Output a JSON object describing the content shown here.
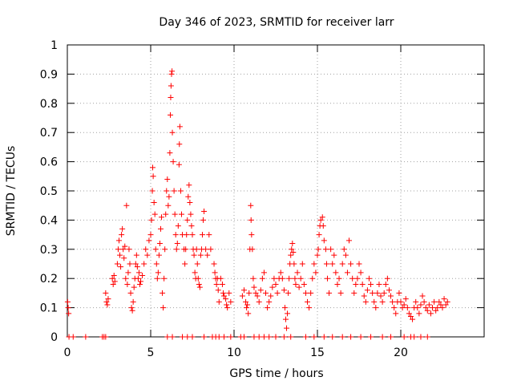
{
  "chart_data": {
    "type": "scatter",
    "title": "Day 346 of 2023, SRMTID for receiver larr",
    "xlabel": "GPS time / hours",
    "ylabel": "SRMTID / TECUs",
    "xlim": [
      0,
      25
    ],
    "ylim": [
      0,
      1
    ],
    "xticks": [
      0,
      5,
      10,
      15,
      20
    ],
    "xtick_labels": [
      "0",
      "5",
      "10",
      "15",
      "20"
    ],
    "yticks": [
      0,
      0.1,
      0.2,
      0.3,
      0.4,
      0.5,
      0.6,
      0.7,
      0.8,
      0.9,
      1
    ],
    "ytick_labels": [
      "0",
      "0.1",
      "0.2",
      "0.3",
      "0.4",
      "0.5",
      "0.6",
      "0.7",
      "0.8",
      "0.9",
      "1"
    ],
    "grid": true,
    "marker": "plus",
    "color": "#ff0000",
    "series": [
      {
        "name": "SRMTID",
        "points": [
          [
            0.02,
            0.12
          ],
          [
            0.05,
            0.1
          ],
          [
            0.08,
            0.08
          ],
          [
            0.1,
            0.0
          ],
          [
            0.35,
            0.0
          ],
          [
            1.1,
            0.0
          ],
          [
            2.1,
            0.0
          ],
          [
            2.2,
            0.0
          ],
          [
            2.3,
            0.0
          ],
          [
            2.3,
            0.15
          ],
          [
            2.35,
            0.12
          ],
          [
            2.4,
            0.11
          ],
          [
            2.45,
            0.13
          ],
          [
            2.7,
            0.2
          ],
          [
            2.75,
            0.18
          ],
          [
            2.8,
            0.21
          ],
          [
            2.85,
            0.19
          ],
          [
            3.0,
            0.25
          ],
          [
            3.05,
            0.3
          ],
          [
            3.1,
            0.33
          ],
          [
            3.15,
            0.28
          ],
          [
            3.2,
            0.24
          ],
          [
            3.25,
            0.35
          ],
          [
            3.3,
            0.37
          ],
          [
            3.35,
            0.3
          ],
          [
            3.4,
            0.27
          ],
          [
            3.45,
            0.31
          ],
          [
            3.5,
            0.2
          ],
          [
            3.55,
            0.45
          ],
          [
            3.6,
            0.18
          ],
          [
            3.65,
            0.22
          ],
          [
            3.7,
            0.3
          ],
          [
            3.75,
            0.25
          ],
          [
            3.8,
            0.15
          ],
          [
            3.85,
            0.1
          ],
          [
            3.9,
            0.09
          ],
          [
            3.95,
            0.12
          ],
          [
            4.0,
            0.17
          ],
          [
            4.05,
            0.2
          ],
          [
            4.1,
            0.25
          ],
          [
            4.15,
            0.28
          ],
          [
            4.2,
            0.24
          ],
          [
            4.25,
            0.2
          ],
          [
            4.3,
            0.22
          ],
          [
            4.35,
            0.18
          ],
          [
            4.4,
            0.19
          ],
          [
            4.5,
            0.21
          ],
          [
            4.6,
            0.25
          ],
          [
            4.7,
            0.3
          ],
          [
            4.8,
            0.28
          ],
          [
            4.9,
            0.33
          ],
          [
            5.0,
            0.35
          ],
          [
            5.05,
            0.4
          ],
          [
            5.1,
            0.5
          ],
          [
            5.12,
            0.58
          ],
          [
            5.15,
            0.55
          ],
          [
            5.2,
            0.46
          ],
          [
            5.25,
            0.42
          ],
          [
            5.3,
            0.3
          ],
          [
            5.35,
            0.25
          ],
          [
            5.4,
            0.2
          ],
          [
            5.45,
            0.22
          ],
          [
            5.5,
            0.28
          ],
          [
            5.55,
            0.32
          ],
          [
            5.6,
            0.37
          ],
          [
            5.65,
            0.41
          ],
          [
            5.7,
            0.15
          ],
          [
            5.75,
            0.1
          ],
          [
            5.8,
            0.2
          ],
          [
            5.85,
            0.3
          ],
          [
            5.9,
            0.42
          ],
          [
            5.95,
            0.5
          ],
          [
            6.0,
            0.54
          ],
          [
            6.05,
            0.45
          ],
          [
            6.1,
            0.48
          ],
          [
            6.15,
            0.63
          ],
          [
            6.18,
            0.76
          ],
          [
            6.2,
            0.82
          ],
          [
            6.22,
            0.86
          ],
          [
            6.25,
            0.9
          ],
          [
            6.28,
            0.91
          ],
          [
            6.3,
            0.7
          ],
          [
            6.35,
            0.6
          ],
          [
            6.4,
            0.5
          ],
          [
            6.45,
            0.42
          ],
          [
            6.5,
            0.35
          ],
          [
            6.55,
            0.3
          ],
          [
            6.6,
            0.32
          ],
          [
            6.65,
            0.38
          ],
          [
            6.7,
            0.59
          ],
          [
            6.72,
            0.66
          ],
          [
            6.75,
            0.72
          ],
          [
            6.8,
            0.5
          ],
          [
            6.85,
            0.42
          ],
          [
            6.9,
            0.35
          ],
          [
            7.0,
            0.3
          ],
          [
            7.05,
            0.25
          ],
          [
            7.1,
            0.3
          ],
          [
            7.15,
            0.35
          ],
          [
            7.2,
            0.4
          ],
          [
            7.25,
            0.48
          ],
          [
            7.3,
            0.52
          ],
          [
            7.35,
            0.46
          ],
          [
            7.4,
            0.42
          ],
          [
            7.45,
            0.38
          ],
          [
            7.5,
            0.35
          ],
          [
            7.55,
            0.3
          ],
          [
            7.6,
            0.28
          ],
          [
            7.65,
            0.22
          ],
          [
            7.7,
            0.2
          ],
          [
            7.75,
            0.3
          ],
          [
            7.8,
            0.25
          ],
          [
            7.85,
            0.2
          ],
          [
            7.9,
            0.18
          ],
          [
            7.95,
            0.17
          ],
          [
            8.0,
            0.28
          ],
          [
            8.05,
            0.3
          ],
          [
            8.1,
            0.35
          ],
          [
            8.15,
            0.4
          ],
          [
            8.2,
            0.43
          ],
          [
            8.3,
            0.3
          ],
          [
            8.4,
            0.28
          ],
          [
            8.5,
            0.35
          ],
          [
            8.6,
            0.3
          ],
          [
            8.8,
            0.25
          ],
          [
            8.85,
            0.22
          ],
          [
            8.9,
            0.2
          ],
          [
            8.95,
            0.18
          ],
          [
            9.0,
            0.2
          ],
          [
            9.05,
            0.16
          ],
          [
            9.1,
            0.12
          ],
          [
            9.2,
            0.2
          ],
          [
            9.3,
            0.18
          ],
          [
            9.35,
            0.15
          ],
          [
            9.4,
            0.14
          ],
          [
            9.5,
            0.13
          ],
          [
            9.55,
            0.11
          ],
          [
            9.6,
            0.1
          ],
          [
            9.7,
            0.15
          ],
          [
            9.8,
            0.12
          ],
          [
            10.5,
            0.14
          ],
          [
            10.6,
            0.16
          ],
          [
            10.7,
            0.12
          ],
          [
            10.75,
            0.1
          ],
          [
            10.8,
            0.11
          ],
          [
            10.85,
            0.08
          ],
          [
            10.9,
            0.15
          ],
          [
            10.95,
            0.3
          ],
          [
            11.0,
            0.45
          ],
          [
            11.02,
            0.4
          ],
          [
            11.05,
            0.35
          ],
          [
            11.1,
            0.3
          ],
          [
            11.15,
            0.2
          ],
          [
            11.2,
            0.17
          ],
          [
            11.3,
            0.15
          ],
          [
            11.4,
            0.14
          ],
          [
            11.5,
            0.12
          ],
          [
            11.6,
            0.16
          ],
          [
            11.7,
            0.2
          ],
          [
            11.8,
            0.22
          ],
          [
            11.9,
            0.15
          ],
          [
            12.0,
            0.1
          ],
          [
            12.1,
            0.12
          ],
          [
            12.2,
            0.14
          ],
          [
            12.3,
            0.17
          ],
          [
            12.4,
            0.2
          ],
          [
            12.5,
            0.18
          ],
          [
            12.6,
            0.15
          ],
          [
            12.7,
            0.2
          ],
          [
            12.8,
            0.22
          ],
          [
            12.9,
            0.2
          ],
          [
            13.0,
            0.16
          ],
          [
            13.05,
            0.1
          ],
          [
            13.1,
            0.06
          ],
          [
            13.15,
            0.03
          ],
          [
            13.2,
            0.08
          ],
          [
            13.25,
            0.15
          ],
          [
            13.3,
            0.2
          ],
          [
            13.35,
            0.25
          ],
          [
            13.4,
            0.28
          ],
          [
            13.45,
            0.3
          ],
          [
            13.5,
            0.32
          ],
          [
            13.55,
            0.29
          ],
          [
            13.6,
            0.25
          ],
          [
            13.65,
            0.2
          ],
          [
            13.7,
            0.18
          ],
          [
            13.8,
            0.22
          ],
          [
            13.9,
            0.17
          ],
          [
            14.0,
            0.2
          ],
          [
            14.1,
            0.25
          ],
          [
            14.2,
            0.18
          ],
          [
            14.3,
            0.15
          ],
          [
            14.4,
            0.12
          ],
          [
            14.5,
            0.1
          ],
          [
            14.6,
            0.15
          ],
          [
            14.7,
            0.2
          ],
          [
            14.8,
            0.25
          ],
          [
            14.9,
            0.22
          ],
          [
            15.0,
            0.28
          ],
          [
            15.05,
            0.3
          ],
          [
            15.1,
            0.35
          ],
          [
            15.15,
            0.38
          ],
          [
            15.2,
            0.4
          ],
          [
            15.3,
            0.41
          ],
          [
            15.35,
            0.38
          ],
          [
            15.4,
            0.33
          ],
          [
            15.5,
            0.3
          ],
          [
            15.55,
            0.25
          ],
          [
            15.6,
            0.2
          ],
          [
            15.7,
            0.15
          ],
          [
            15.8,
            0.3
          ],
          [
            15.9,
            0.25
          ],
          [
            16.0,
            0.28
          ],
          [
            16.1,
            0.22
          ],
          [
            16.2,
            0.18
          ],
          [
            16.3,
            0.2
          ],
          [
            16.4,
            0.15
          ],
          [
            16.5,
            0.25
          ],
          [
            16.6,
            0.3
          ],
          [
            16.7,
            0.28
          ],
          [
            16.8,
            0.22
          ],
          [
            16.9,
            0.33
          ],
          [
            17.0,
            0.25
          ],
          [
            17.1,
            0.2
          ],
          [
            17.2,
            0.15
          ],
          [
            17.3,
            0.18
          ],
          [
            17.4,
            0.2
          ],
          [
            17.5,
            0.25
          ],
          [
            17.6,
            0.22
          ],
          [
            17.7,
            0.18
          ],
          [
            17.8,
            0.14
          ],
          [
            17.9,
            0.12
          ],
          [
            18.0,
            0.16
          ],
          [
            18.1,
            0.2
          ],
          [
            18.2,
            0.18
          ],
          [
            18.3,
            0.15
          ],
          [
            18.4,
            0.12
          ],
          [
            18.5,
            0.1
          ],
          [
            18.6,
            0.15
          ],
          [
            18.7,
            0.18
          ],
          [
            18.8,
            0.14
          ],
          [
            18.9,
            0.12
          ],
          [
            19.0,
            0.15
          ],
          [
            19.1,
            0.18
          ],
          [
            19.2,
            0.2
          ],
          [
            19.3,
            0.16
          ],
          [
            19.4,
            0.14
          ],
          [
            19.5,
            0.12
          ],
          [
            19.6,
            0.1
          ],
          [
            19.7,
            0.08
          ],
          [
            19.8,
            0.12
          ],
          [
            19.9,
            0.15
          ],
          [
            20.0,
            0.12
          ],
          [
            20.1,
            0.1
          ],
          [
            20.2,
            0.11
          ],
          [
            20.3,
            0.13
          ],
          [
            20.4,
            0.1
          ],
          [
            20.5,
            0.08
          ],
          [
            20.6,
            0.07
          ],
          [
            20.7,
            0.06
          ],
          [
            20.8,
            0.1
          ],
          [
            20.9,
            0.12
          ],
          [
            21.0,
            0.1
          ],
          [
            21.1,
            0.08
          ],
          [
            21.2,
            0.11
          ],
          [
            21.3,
            0.14
          ],
          [
            21.4,
            0.12
          ],
          [
            21.5,
            0.1
          ],
          [
            21.6,
            0.09
          ],
          [
            21.7,
            0.11
          ],
          [
            21.8,
            0.08
          ],
          [
            21.9,
            0.1
          ],
          [
            22.0,
            0.12
          ],
          [
            22.1,
            0.09
          ],
          [
            22.2,
            0.1
          ],
          [
            22.3,
            0.12
          ],
          [
            22.4,
            0.11
          ],
          [
            22.5,
            0.1
          ],
          [
            22.6,
            0.13
          ],
          [
            22.7,
            0.11
          ],
          [
            22.8,
            0.12
          ],
          [
            6.0,
            0.0
          ],
          [
            6.3,
            0.0
          ],
          [
            6.9,
            0.0
          ],
          [
            7.2,
            0.0
          ],
          [
            7.5,
            0.0
          ],
          [
            8.2,
            0.0
          ],
          [
            8.7,
            0.0
          ],
          [
            8.9,
            0.0
          ],
          [
            9.1,
            0.0
          ],
          [
            9.4,
            0.0
          ],
          [
            9.8,
            0.0
          ],
          [
            10.4,
            0.0
          ],
          [
            10.6,
            0.0
          ],
          [
            11.2,
            0.0
          ],
          [
            11.5,
            0.0
          ],
          [
            11.8,
            0.0
          ],
          [
            12.1,
            0.0
          ],
          [
            12.5,
            0.0
          ],
          [
            13.0,
            0.0
          ],
          [
            13.4,
            0.0
          ],
          [
            14.3,
            0.0
          ],
          [
            14.8,
            0.0
          ],
          [
            15.4,
            0.0
          ],
          [
            15.9,
            0.0
          ],
          [
            16.5,
            0.0
          ],
          [
            17.0,
            0.0
          ],
          [
            17.6,
            0.0
          ],
          [
            18.2,
            0.0
          ],
          [
            18.9,
            0.0
          ],
          [
            19.4,
            0.0
          ],
          [
            20.2,
            0.0
          ],
          [
            20.6,
            0.0
          ],
          [
            20.8,
            0.0
          ],
          [
            21.2,
            0.0
          ],
          [
            21.6,
            0.0
          ]
        ]
      }
    ]
  }
}
